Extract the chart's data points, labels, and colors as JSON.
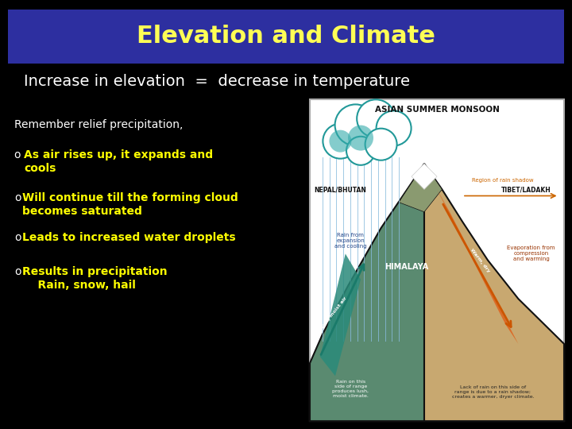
{
  "background_color": "#000000",
  "title_text": "Elevation and Climate",
  "title_bg_color": "#2d2fa0",
  "title_text_color": "#ffff55",
  "title_fontsize": 22,
  "subtitle_text": "Increase in elevation  =  decrease in temperature",
  "subtitle_color": "#ffffff",
  "subtitle_fontsize": 14,
  "bullet_fontsize": 10,
  "remember_text": "Remember relief precipitation,",
  "remember_color": "#ffffff",
  "bullets": [
    {
      "o_color": "#ffffff",
      "text": "As air rises up, it expands and\ncools",
      "text_color": "#ffff00"
    },
    {
      "o_color": "#ffffff",
      "text": "Will continue till the forming cloud\nbecomes saturated",
      "text_color": "#ffff00"
    },
    {
      "o_color": "#ffffff",
      "text": "Leads to increased water droplets",
      "text_color": "#ffff00"
    },
    {
      "o_color": "#ffffff",
      "text": "Results in precipitation\n    Rain, snow, hail",
      "text_color": "#ffff00"
    }
  ],
  "diagram": {
    "border_color": "#cccccc",
    "bg_color": "#ffffff",
    "title": "ASIAN SUMMER MONSOON",
    "title_color": "#000000",
    "left_label": "NEPAL/BHUTAN",
    "right_label": "TIBET/LADAKH",
    "himalaya_label": "HIMALAYA",
    "himalaya_color": "#ffffff",
    "left_mountain_color": "#5a8a6a",
    "right_mountain_color": "#c8a96e",
    "rain_color": "#8ab8d4",
    "cloud_face": "#ffffff",
    "cloud_edge": "#3399aa",
    "arrow_warm_color": "#2a7a6e",
    "arrow_dry_color": "#cc5500",
    "region_shadow_color": "#cc6600",
    "evap_color": "#993300",
    "rain_text_color": "#2255aa",
    "left_bottom_text": "Rain on this\nside of range\nproduces lush,\nmoist climate.",
    "right_bottom_text": "Lack of rain on this side of\nrange is due to a rain shadow;\ncreates a warmer, dryer climate."
  }
}
